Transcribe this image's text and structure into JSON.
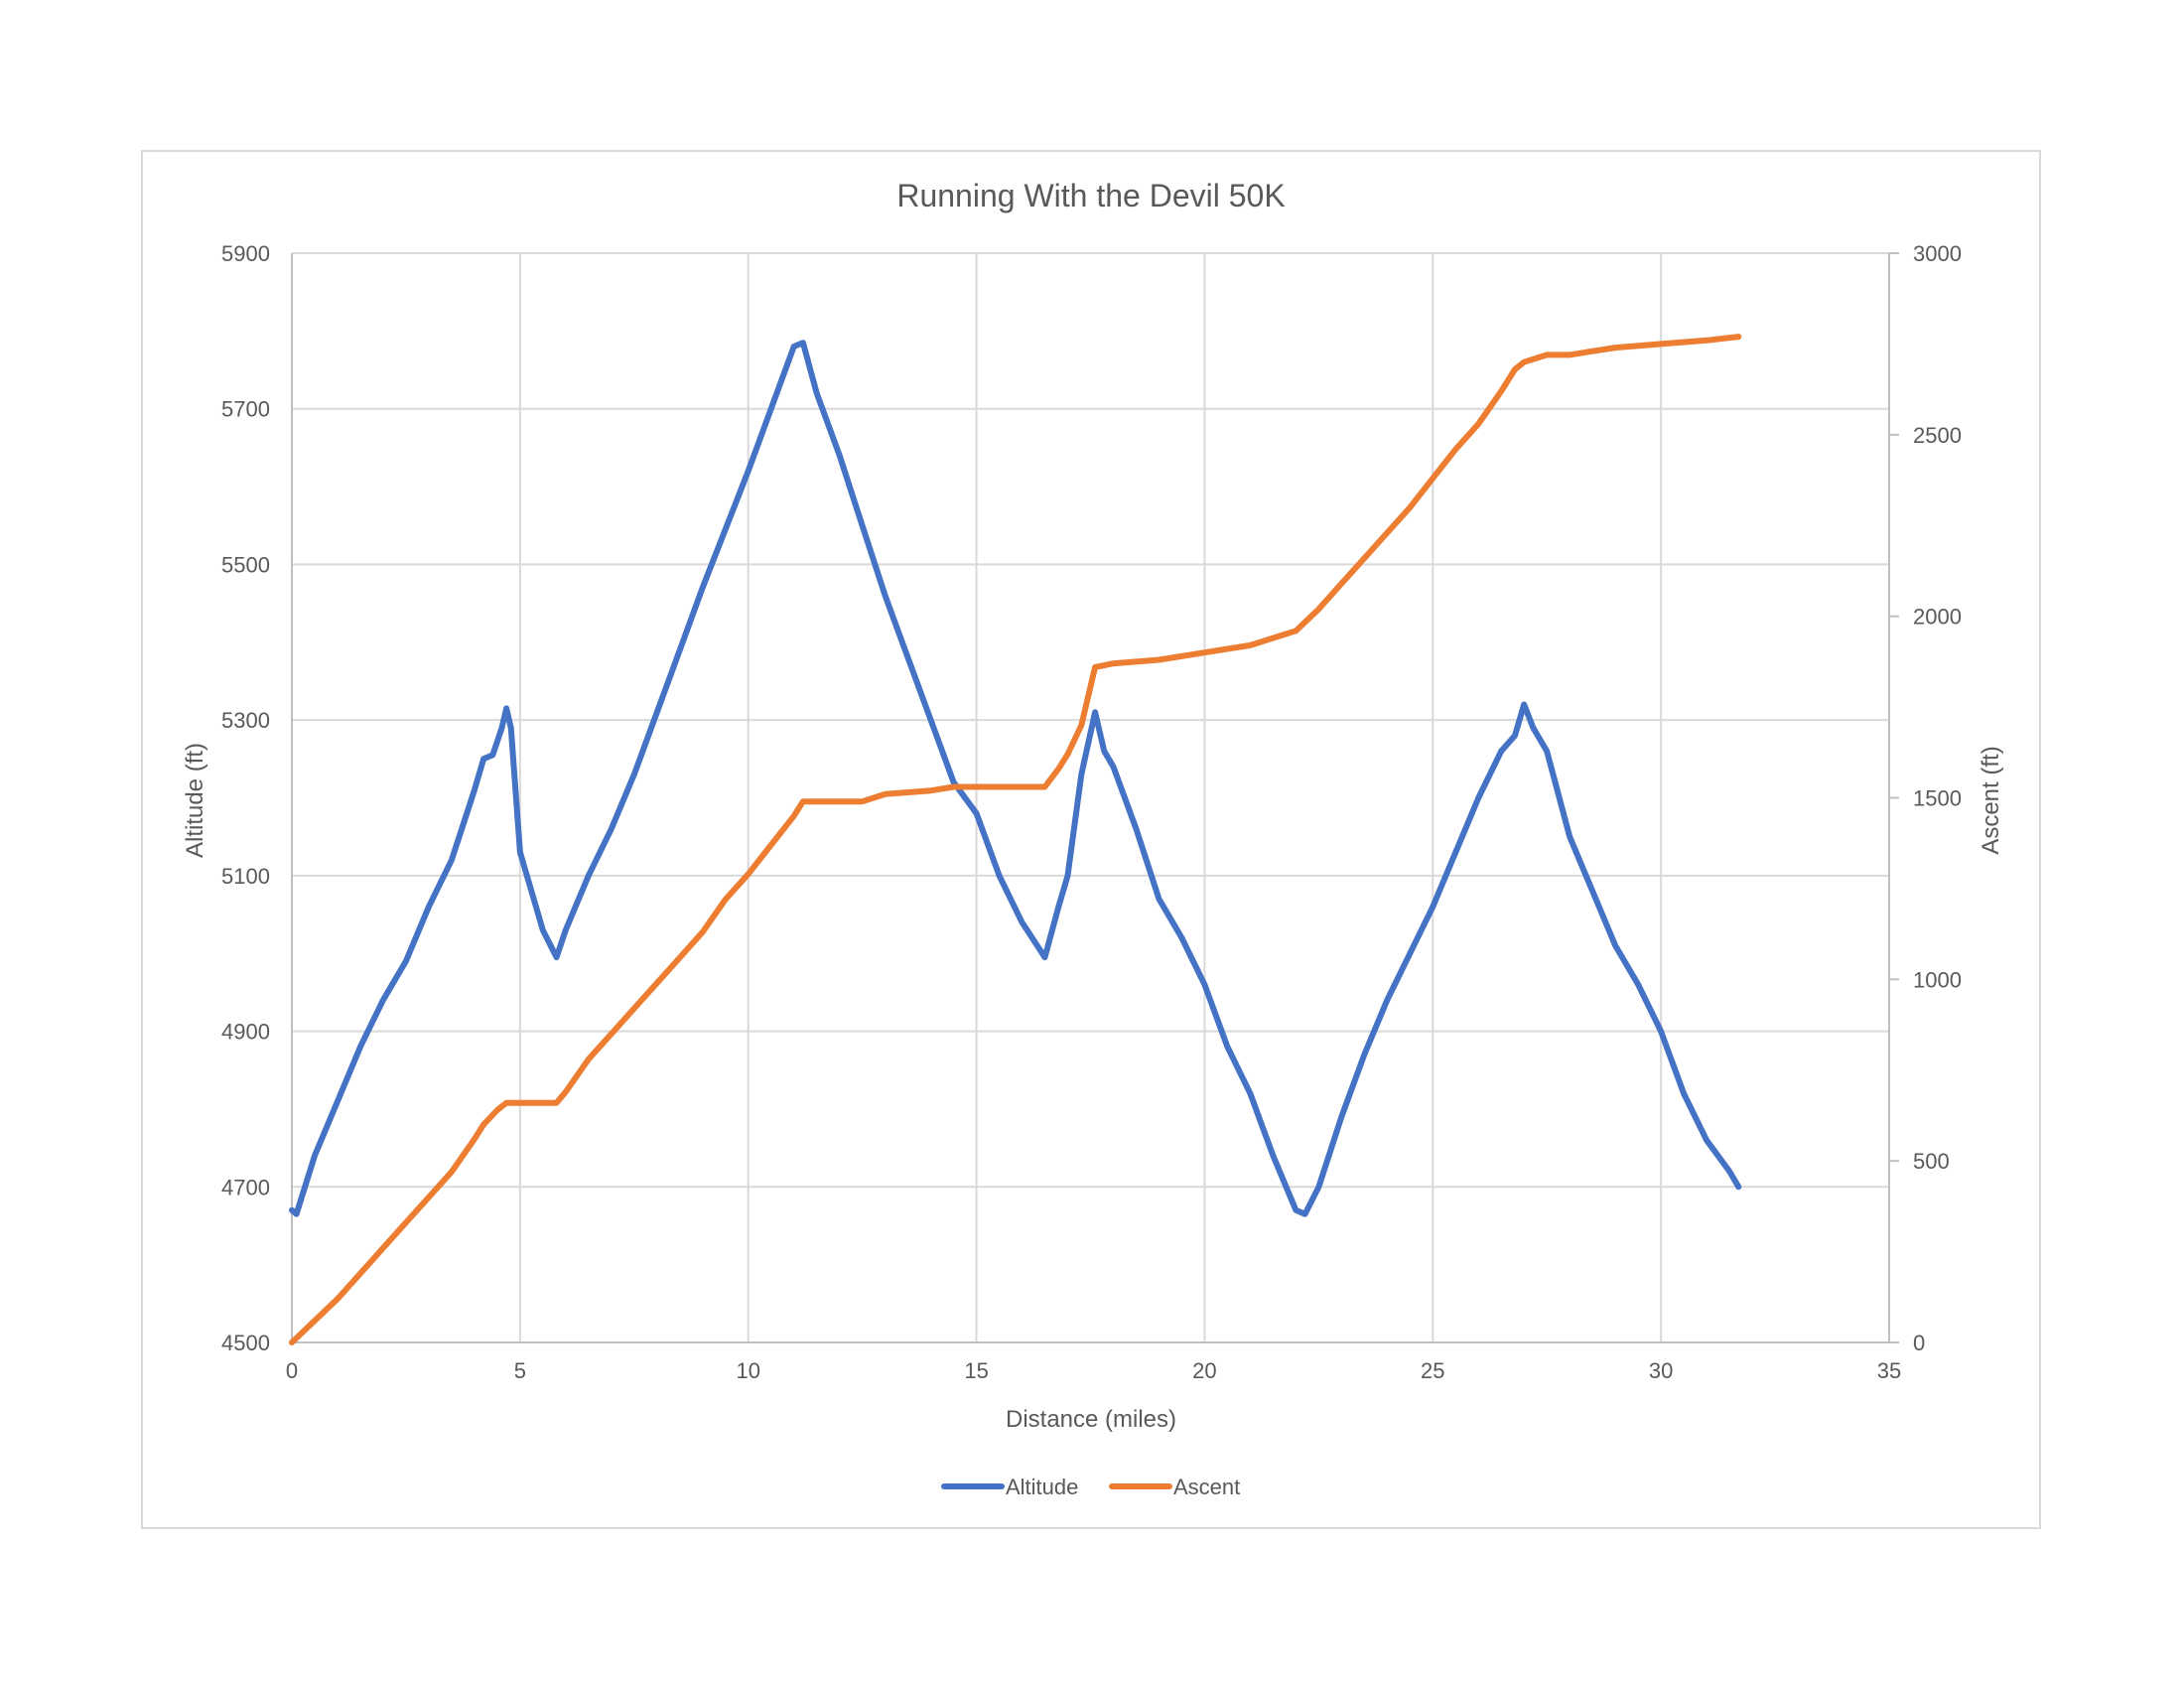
{
  "chart_data": {
    "type": "line",
    "title": "Running With the Devil 50K",
    "xlabel": "Distance (miles)",
    "ylabel": "Altitude (ft)",
    "y2label": "Ascent (ft)",
    "xlim": [
      0,
      35
    ],
    "ylim": [
      4500,
      5900
    ],
    "y2lim": [
      0,
      3000
    ],
    "x_ticks": [
      "0",
      "5",
      "10",
      "15",
      "20",
      "25",
      "30",
      "35"
    ],
    "y_ticks": [
      "4500",
      "4700",
      "4900",
      "5100",
      "5300",
      "5500",
      "5700",
      "5900"
    ],
    "y2_ticks": [
      "0",
      "500",
      "1000",
      "1500",
      "2000",
      "2500",
      "3000"
    ],
    "grid": true,
    "legend_position": "bottom",
    "series": [
      {
        "name": "Altitude",
        "axis": "left",
        "color": "#4472C4",
        "x": [
          0,
          0.1,
          0.5,
          1.0,
          1.5,
          2.0,
          2.5,
          3.0,
          3.5,
          4.0,
          4.2,
          4.4,
          4.6,
          4.7,
          4.8,
          5.0,
          5.5,
          5.8,
          6.0,
          6.5,
          7.0,
          7.5,
          8.0,
          8.5,
          9.0,
          9.2,
          9.5,
          10.0,
          10.5,
          11.0,
          11.2,
          11.5,
          12.0,
          12.5,
          13.0,
          13.5,
          14.0,
          14.5,
          15.0,
          15.5,
          16.0,
          16.5,
          16.8,
          17.0,
          17.3,
          17.6,
          17.8,
          18.0,
          18.5,
          19.0,
          19.5,
          20.0,
          20.5,
          21.0,
          21.5,
          22.0,
          22.2,
          22.5,
          23.0,
          23.5,
          24.0,
          24.5,
          25.0,
          25.5,
          26.0,
          26.5,
          26.8,
          27.0,
          27.2,
          27.5,
          28.0,
          28.5,
          29.0,
          29.5,
          30.0,
          30.5,
          31.0,
          31.5,
          31.7
        ],
        "y": [
          4670,
          4665,
          4740,
          4810,
          4880,
          4940,
          4990,
          5060,
          5120,
          5210,
          5250,
          5255,
          5290,
          5315,
          5290,
          5130,
          5030,
          4995,
          5030,
          5100,
          5160,
          5230,
          5310,
          5390,
          5470,
          5500,
          5545,
          5620,
          5700,
          5780,
          5785,
          5720,
          5640,
          5550,
          5460,
          5380,
          5300,
          5220,
          5180,
          5100,
          5040,
          4995,
          5060,
          5100,
          5230,
          5310,
          5260,
          5240,
          5160,
          5070,
          5020,
          4960,
          4880,
          4820,
          4740,
          4670,
          4665,
          4700,
          4790,
          4870,
          4940,
          5000,
          5060,
          5130,
          5200,
          5260,
          5280,
          5320,
          5290,
          5260,
          5150,
          5080,
          5010,
          4960,
          4900,
          4820,
          4760,
          4720,
          4700
        ]
      },
      {
        "name": "Ascent",
        "axis": "right",
        "color": "#ED7D31",
        "x": [
          0,
          0.5,
          1.0,
          1.5,
          2.0,
          2.5,
          3.0,
          3.5,
          4.0,
          4.2,
          4.5,
          4.7,
          5.0,
          5.5,
          5.8,
          6.0,
          6.5,
          7.0,
          7.5,
          8.0,
          8.5,
          9.0,
          9.5,
          10.0,
          10.5,
          11.0,
          11.2,
          12.0,
          12.5,
          13.0,
          14.0,
          14.5,
          15.0,
          16.0,
          16.5,
          16.8,
          17.0,
          17.3,
          17.6,
          18.0,
          19.0,
          20.0,
          21.0,
          22.0,
          22.5,
          23.0,
          23.5,
          24.0,
          24.5,
          25.0,
          25.5,
          26.0,
          26.5,
          26.8,
          27.0,
          27.5,
          28.0,
          28.5,
          29.0,
          30.0,
          31.0,
          31.7
        ],
        "y": [
          0,
          60,
          120,
          190,
          260,
          330,
          400,
          470,
          560,
          600,
          640,
          660,
          660,
          660,
          660,
          690,
          780,
          850,
          920,
          990,
          1060,
          1130,
          1220,
          1290,
          1370,
          1450,
          1490,
          1490,
          1490,
          1510,
          1520,
          1530,
          1530,
          1530,
          1530,
          1580,
          1620,
          1700,
          1860,
          1870,
          1880,
          1900,
          1920,
          1960,
          2020,
          2090,
          2160,
          2230,
          2300,
          2380,
          2460,
          2530,
          2620,
          2680,
          2700,
          2720,
          2720,
          2730,
          2740,
          2750,
          2760,
          2770
        ]
      }
    ]
  }
}
